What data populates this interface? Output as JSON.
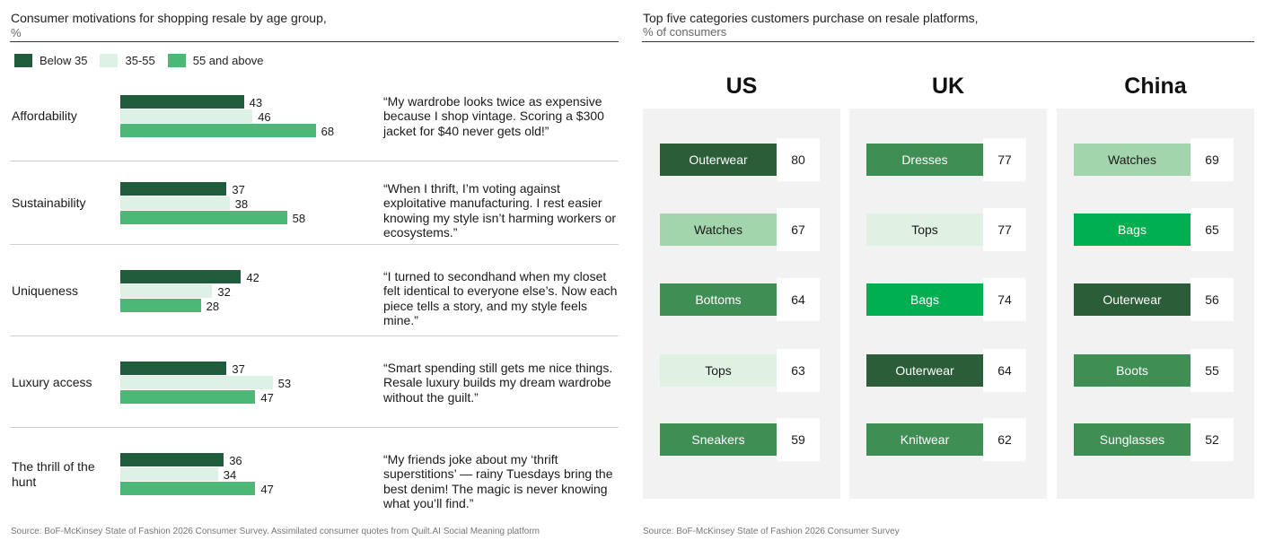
{
  "left": {
    "title": "Consumer motivations for shopping resale by age group,",
    "unit": "%",
    "legend": [
      {
        "label": "Below 35",
        "color": "#1f5c3c"
      },
      {
        "label": "35-55",
        "color": "#ddf1e4"
      },
      {
        "label": "55 and above",
        "color": "#4cb878"
      }
    ],
    "source": "Source: BoF-McKinsey State of Fashion 2026 Consumer Survey. Assimilated consumer quotes from Quilt.AI Social Meaning platform"
  },
  "chart_data": [
    {
      "type": "bar",
      "orientation": "horizontal",
      "title": "Consumer motivations for shopping resale by age group,",
      "unit": "%",
      "categories": [
        "Affordability",
        "Sustainability",
        "Uniqueness",
        "Luxury access",
        "The thrill of the hunt"
      ],
      "series": [
        {
          "name": "Below 35",
          "values": [
            43,
            37,
            42,
            37,
            36
          ]
        },
        {
          "name": "35-55",
          "values": [
            46,
            38,
            32,
            53,
            34
          ]
        },
        {
          "name": "55 and above",
          "values": [
            68,
            58,
            28,
            47,
            47
          ]
        }
      ],
      "quotes": [
        "“My wardrobe looks twice as expensive because I shop vintage. Scoring a $300 jacket for $40 never gets old!”",
        "“When I thrift, I’m voting against exploitative manufacturing. I rest easier knowing my style isn’t harming workers or ecosystems.”",
        "“I turned to secondhand when my closet felt identical to everyone else’s. Now each piece tells a story, and my style feels mine.”",
        "“Smart spending still gets me nice things. Resale luxury builds my dream wardrobe without the guilt.”",
        "“My friends joke about my ‘thrift superstitions’ — rainy Tuesdays bring the best denim! The magic is never knowing what you’ll find.”"
      ]
    },
    {
      "type": "table",
      "title": "Top five categories customers purchase on resale platforms,",
      "unit": "% of consumers",
      "columns": [
        {
          "country": "US",
          "items": [
            {
              "label": "Outerwear",
              "value": 80,
              "color": "#2b5e38",
              "text_color": "#ffffff"
            },
            {
              "label": "Watches",
              "value": 67,
              "color": "#a3d5ac",
              "text_color": "#1a1a1a"
            },
            {
              "label": "Bottoms",
              "value": 64,
              "color": "#3f8f55",
              "text_color": "#ffffff"
            },
            {
              "label": "Tops",
              "value": 63,
              "color": "#dff1e3",
              "text_color": "#1a1a1a"
            },
            {
              "label": "Sneakers",
              "value": 59,
              "color": "#3f8f55",
              "text_color": "#ffffff"
            }
          ]
        },
        {
          "country": "UK",
          "items": [
            {
              "label": "Dresses",
              "value": 77,
              "color": "#3f8f55",
              "text_color": "#ffffff"
            },
            {
              "label": "Tops",
              "value": 77,
              "color": "#dff1e3",
              "text_color": "#1a1a1a"
            },
            {
              "label": "Bags",
              "value": 74,
              "color": "#00b050",
              "text_color": "#ffffff"
            },
            {
              "label": "Outerwear",
              "value": 64,
              "color": "#2b5e38",
              "text_color": "#ffffff"
            },
            {
              "label": "Knitwear",
              "value": 62,
              "color": "#3f8f55",
              "text_color": "#ffffff"
            }
          ]
        },
        {
          "country": "China",
          "items": [
            {
              "label": "Watches",
              "value": 69,
              "color": "#a3d5ac",
              "text_color": "#1a1a1a"
            },
            {
              "label": "Bags",
              "value": 65,
              "color": "#00b050",
              "text_color": "#ffffff"
            },
            {
              "label": "Outerwear",
              "value": 56,
              "color": "#2b5e38",
              "text_color": "#ffffff"
            },
            {
              "label": "Boots",
              "value": 55,
              "color": "#3f8f55",
              "text_color": "#ffffff"
            },
            {
              "label": "Sunglasses",
              "value": 52,
              "color": "#3f8f55",
              "text_color": "#ffffff"
            }
          ]
        }
      ]
    }
  ],
  "right": {
    "title": "Top five categories customers purchase on resale platforms,",
    "unit": "% of consumers",
    "source": "Source: BoF-McKinsey State of Fashion 2026 Consumer Survey"
  }
}
